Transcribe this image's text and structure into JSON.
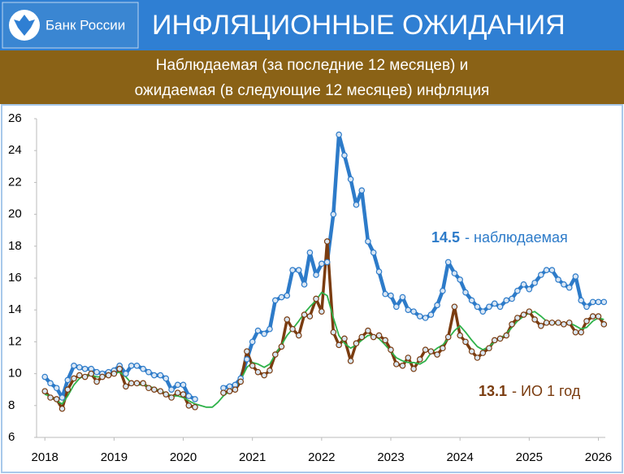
{
  "header": {
    "logo_text": "Банк России",
    "title": "ИНФЛЯЦИОННЫЕ ОЖИДАНИЯ"
  },
  "chart_data": {
    "type": "line",
    "subtitle": [
      "Наблюдаемая (за последние 12 месяцев) и",
      "ожидаемая (в следующие 12 месяцев) инфляция"
    ],
    "x": [
      2018,
      2018.08,
      2018.17,
      2018.25,
      2018.33,
      2018.42,
      2018.5,
      2018.58,
      2018.67,
      2018.75,
      2018.83,
      2018.92,
      2019,
      2019.08,
      2019.17,
      2019.25,
      2019.33,
      2019.42,
      2019.5,
      2019.58,
      2019.67,
      2019.75,
      2019.83,
      2019.92,
      2020,
      2020.08,
      2020.17,
      2020.25,
      2020.33,
      2020.42,
      2020.5,
      2020.58,
      2020.67,
      2020.75,
      2020.83,
      2020.92,
      2021,
      2021.08,
      2021.17,
      2021.25,
      2021.33,
      2021.42,
      2021.5,
      2021.58,
      2021.67,
      2021.75,
      2021.83,
      2021.92,
      2022,
      2022.08,
      2022.17,
      2022.25,
      2022.33,
      2022.42,
      2022.5,
      2022.58,
      2022.67,
      2022.75,
      2022.83,
      2022.92,
      2023,
      2023.08,
      2023.17,
      2023.25,
      2023.33,
      2023.42,
      2023.5,
      2023.58,
      2023.67,
      2023.75,
      2023.83,
      2023.92,
      2024,
      2024.08,
      2024.17,
      2024.25,
      2024.33,
      2024.42,
      2024.5,
      2024.58,
      2024.67,
      2024.75,
      2024.83,
      2024.92,
      2025,
      2025.08,
      2025.17,
      2025.25,
      2025.33,
      2025.42,
      2025.5,
      2025.58,
      2025.67,
      2025.75,
      2025.83,
      2025.92,
      2026,
      2026.08
    ],
    "series": [
      {
        "color": "#2d7bc9",
        "markers": true,
        "width": 4.5,
        "values": [
          9.8,
          9.4,
          9.1,
          8.5,
          9.6,
          10.5,
          10.4,
          10.3,
          10.3,
          10.1,
          10.0,
          10.1,
          10.2,
          10.5,
          10.0,
          10.5,
          10.5,
          10.3,
          10.1,
          9.9,
          9.9,
          9.7,
          9.0,
          9.3,
          9.3,
          8.6,
          8.4,
          null,
          null,
          null,
          null,
          9.1,
          9.2,
          9.3,
          9.7,
          10.9,
          12.0,
          12.7,
          12.5,
          12.8,
          14.6,
          14.8,
          14.9,
          16.5,
          16.5,
          15.6,
          17.6,
          16.2,
          16.9,
          17.0,
          20.0,
          25.0,
          23.7,
          22.2,
          20.6,
          21.5,
          18.3,
          17.6,
          16.4,
          15.0,
          14.9,
          14.2,
          14.8,
          14.0,
          13.9,
          13.6,
          13.5,
          13.7,
          14.3,
          15.2,
          17.0,
          16.3,
          15.9,
          15.1,
          14.6,
          14.2,
          13.9,
          14.2,
          14.4,
          14.2,
          14.6,
          14.7,
          15.2,
          15.6,
          15.3,
          15.7,
          16.2,
          16.5,
          16.5,
          15.9,
          15.6,
          15.4,
          16.1,
          14.6,
          14.2,
          14.5,
          14.5,
          14.5
        ]
      },
      {
        "color": "#7a3c10",
        "markers": true,
        "width": 3.5,
        "values": [
          8.9,
          8.5,
          8.4,
          7.8,
          9.0,
          9.7,
          9.9,
          9.8,
          10.0,
          9.5,
          9.8,
          9.9,
          10.0,
          10.3,
          9.2,
          9.4,
          9.4,
          9.4,
          9.1,
          9.0,
          8.9,
          8.7,
          8.5,
          8.8,
          8.7,
          8.0,
          7.9,
          null,
          null,
          null,
          null,
          8.8,
          8.9,
          9.0,
          9.5,
          11.4,
          10.5,
          10.1,
          9.9,
          10.2,
          11.2,
          11.7,
          13.4,
          12.8,
          12.4,
          13.7,
          13.6,
          14.7,
          13.9,
          18.3,
          12.6,
          11.8,
          12.2,
          10.8,
          11.9,
          12.3,
          12.7,
          12.3,
          12.4,
          12.1,
          11.5,
          10.6,
          10.5,
          11.0,
          10.3,
          10.9,
          11.5,
          11.4,
          11.2,
          11.6,
          12.3,
          14.2,
          12.4,
          12.0,
          11.4,
          11.0,
          11.3,
          11.6,
          12.1,
          12.2,
          12.4,
          13.1,
          13.5,
          13.7,
          13.9,
          13.4,
          13.0,
          13.2,
          13.2,
          13.2,
          13.1,
          13.2,
          12.6,
          12.6,
          13.3,
          13.6,
          13.6,
          13.1
        ]
      },
      {
        "color": "#2fb24a",
        "markers": false,
        "width": 1.8,
        "values": [
          8.7,
          8.6,
          8.3,
          8.1,
          8.6,
          9.3,
          9.7,
          9.9,
          9.9,
          9.8,
          9.8,
          9.9,
          10.0,
          10.1,
          9.8,
          9.4,
          9.3,
          9.3,
          9.2,
          9.1,
          8.9,
          8.8,
          8.6,
          8.6,
          8.5,
          8.3,
          8.1,
          8.0,
          7.9,
          7.9,
          8.2,
          8.6,
          8.9,
          9.1,
          9.6,
          10.4,
          10.7,
          10.6,
          10.4,
          10.6,
          11.2,
          11.8,
          12.4,
          12.8,
          13.3,
          13.8,
          14.2,
          14.6,
          15.1,
          14.9,
          13.5,
          12.4,
          11.9,
          11.6,
          11.8,
          12.1,
          12.4,
          12.4,
          12.2,
          11.8,
          11.4,
          11.0,
          10.8,
          10.7,
          10.7,
          10.6,
          10.8,
          11.3,
          11.6,
          11.8,
          12.2,
          12.7,
          13.0,
          12.6,
          12.1,
          11.7,
          11.5,
          11.7,
          12.0,
          12.2,
          12.5,
          12.9,
          13.3,
          13.6,
          13.8,
          13.9,
          13.6,
          13.3,
          13.2,
          13.1,
          13.2,
          13.2,
          13.0,
          12.8,
          12.9,
          13.3,
          13.5,
          13.4
        ]
      }
    ],
    "annotations": [
      {
        "value": 14.5,
        "text": "- наблюдаемая",
        "color": "#2d7bc9"
      },
      {
        "value": 13.1,
        "text": "- ИО 1 год",
        "color": "#7a3c10"
      }
    ],
    "xlim": [
      2017.88,
      2026.1
    ],
    "xticks": [
      2018,
      2019,
      2020,
      2021,
      2022,
      2023,
      2024,
      2025,
      2026
    ],
    "ylim": [
      6,
      26
    ],
    "yticks": [
      6,
      8,
      10,
      12,
      14,
      16,
      18,
      20,
      22,
      24,
      26
    ],
    "grid": false
  }
}
